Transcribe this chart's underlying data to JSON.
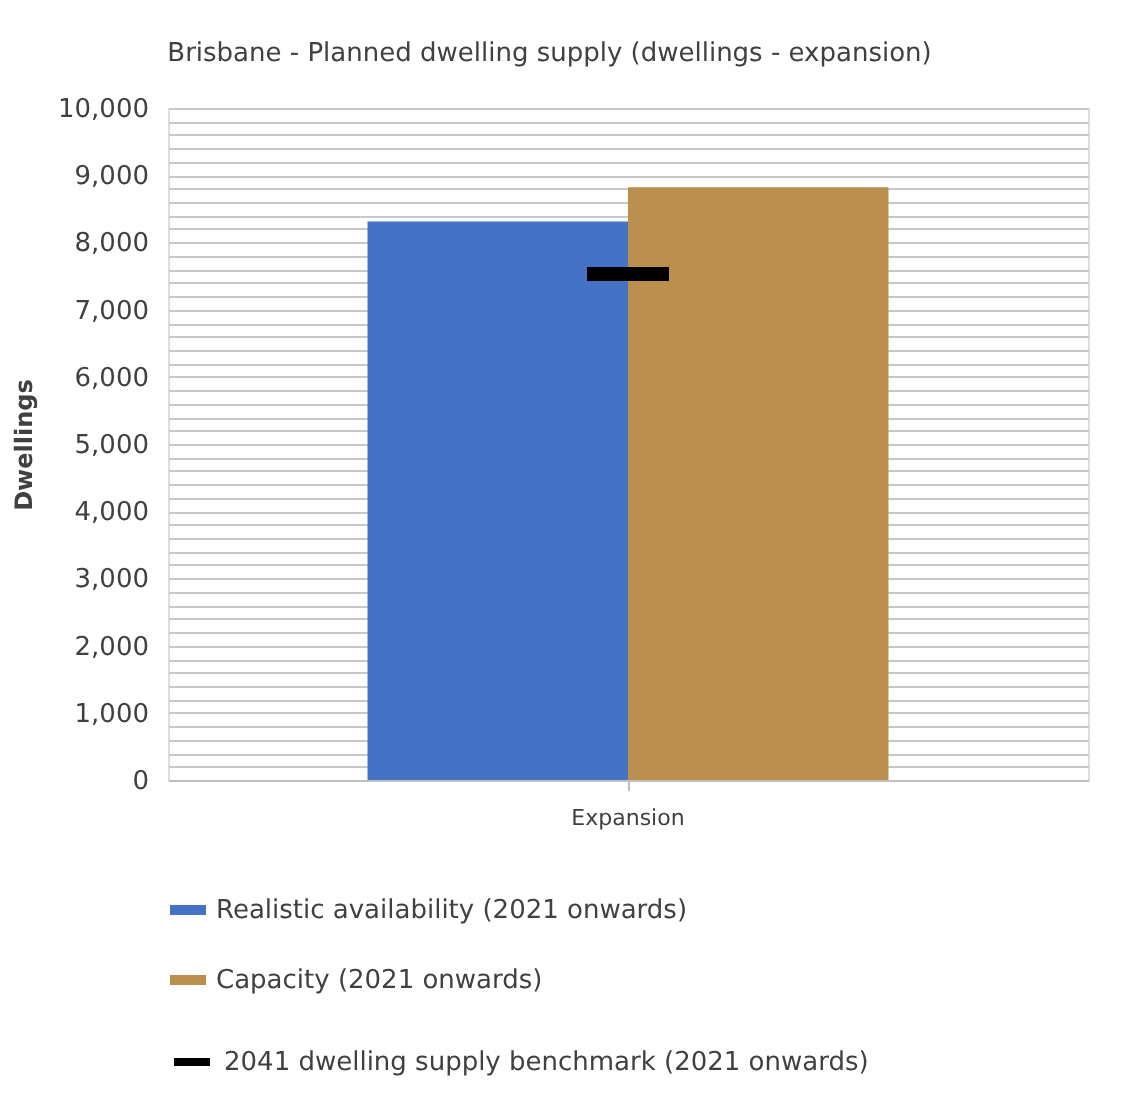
{
  "chart_data": {
    "type": "bar",
    "title": "Brisbane - Planned dwelling supply (dwellings - expansion)",
    "ylabel": "Dwellings",
    "categories": [
      "Expansion"
    ],
    "series": [
      {
        "name": "Realistic availability (2021 onwards)",
        "color": "#4472c4",
        "values": [
          8310
        ]
      },
      {
        "name": "Capacity (2021 onwards)",
        "color": "#bb8f4d",
        "values": [
          8820
        ]
      }
    ],
    "ref_lines": [
      {
        "axis": "y",
        "value": 7530,
        "label": "2041 dwelling supply benchmark (2021 onwards)",
        "color": "#000000"
      }
    ],
    "ylim": [
      0,
      10000
    ],
    "yticks": [
      0,
      {
        "value": 200,
        "label": null
      },
      {
        "value": 400,
        "label": null
      },
      {
        "value": 600,
        "label": null
      },
      {
        "value": 800,
        "label": null
      },
      {
        "value": 1000,
        "label": "1,000"
      },
      {
        "value": 1200,
        "label": null
      },
      {
        "value": 1400,
        "label": null
      },
      {
        "value": 1600,
        "label": null
      },
      {
        "value": 1800,
        "label": null
      },
      {
        "value": 2000,
        "label": "2,000"
      },
      {
        "value": 2200,
        "label": null
      },
      {
        "value": 2400,
        "label": null
      },
      {
        "value": 2600,
        "label": null
      },
      {
        "value": 2800,
        "label": null
      },
      {
        "value": 3000,
        "label": "3,000"
      },
      {
        "value": 3200,
        "label": null
      },
      {
        "value": 3400,
        "label": null
      },
      {
        "value": 3600,
        "label": null
      },
      {
        "value": 3800,
        "label": null
      },
      {
        "value": 4000,
        "label": "4,000"
      },
      {
        "value": 4200,
        "label": null
      },
      {
        "value": 4400,
        "label": null
      },
      {
        "value": 4600,
        "label": null
      },
      {
        "value": 4800,
        "label": null
      },
      {
        "value": 5000,
        "label": "5,000"
      },
      {
        "value": 5200,
        "label": null
      },
      {
        "value": 5400,
        "label": null
      },
      {
        "value": 5600,
        "label": null
      },
      {
        "value": 5800,
        "label": null
      },
      {
        "value": 6000,
        "label": "6,000"
      },
      {
        "value": 6200,
        "label": null
      },
      {
        "value": 6400,
        "label": null
      },
      {
        "value": 6600,
        "label": null
      },
      {
        "value": 6800,
        "label": null
      },
      {
        "value": 7000,
        "label": "7,000"
      },
      {
        "value": 7200,
        "label": null
      },
      {
        "value": 7400,
        "label": null
      },
      {
        "value": 7600,
        "label": null
      },
      {
        "value": 7800,
        "label": null
      },
      {
        "value": 8000,
        "label": "8,000"
      },
      {
        "value": 8200,
        "label": null
      },
      {
        "value": 8400,
        "label": null
      },
      {
        "value": 8600,
        "label": null
      },
      {
        "value": 8800,
        "label": null
      },
      {
        "value": 9000,
        "label": "9,000"
      },
      {
        "value": 9200,
        "label": null
      },
      {
        "value": 9400,
        "label": null
      },
      {
        "value": 9600,
        "label": null
      },
      {
        "value": 9800,
        "label": null
      },
      {
        "value": 10000,
        "label": "10,000"
      }
    ],
    "grid": "y",
    "legend": "bottom"
  }
}
